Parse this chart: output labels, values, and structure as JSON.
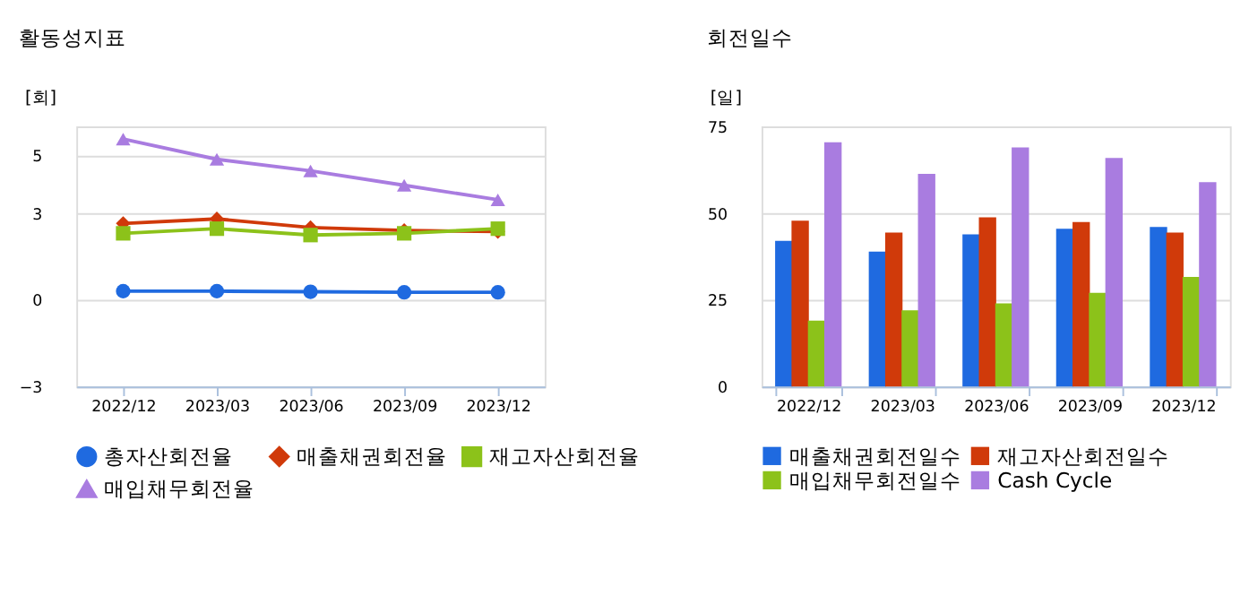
{
  "chart_data": [
    {
      "type": "line",
      "title": "활동성지표",
      "ylabel": "[회]",
      "categories": [
        "2022/12",
        "2023/03",
        "2023/06",
        "2023/09",
        "2023/12"
      ],
      "ylim": [
        -3,
        6
      ],
      "yticks": [
        -3,
        0,
        3,
        5
      ],
      "grid": "y",
      "legend": "bottom",
      "line_style": "solid",
      "series": [
        {
          "name": "총자산회전율",
          "color": "#1f6ae0",
          "marker": "circle",
          "values": [
            0.3,
            0.3,
            0.28,
            0.26,
            0.26
          ]
        },
        {
          "name": "매출채권회전율",
          "color": "#d03a0a",
          "marker": "diamond",
          "values": [
            2.64,
            2.8,
            2.5,
            2.4,
            2.36
          ]
        },
        {
          "name": "재고자산회전율",
          "color": "#8cc21a",
          "marker": "square",
          "values": [
            2.3,
            2.46,
            2.24,
            2.3,
            2.46
          ]
        },
        {
          "name": "매입채무회전율",
          "color": "#a97ce0",
          "marker": "triangle",
          "values": [
            5.56,
            4.86,
            4.46,
            3.96,
            3.46
          ]
        }
      ]
    },
    {
      "type": "bar",
      "title": "회전일수",
      "ylabel": "[일]",
      "categories": [
        "2022/12",
        "2023/03",
        "2023/06",
        "2023/09",
        "2023/12"
      ],
      "ylim": [
        0,
        75
      ],
      "yticks": [
        0,
        25,
        50,
        75
      ],
      "grid": "y",
      "legend": "bottom",
      "series": [
        {
          "name": "매출채권회전일수",
          "color": "#1f6ae0",
          "values": [
            42,
            38.9,
            43.9,
            45.5,
            46
          ]
        },
        {
          "name": "재고자산회전일수",
          "color": "#d03a0a",
          "values": [
            47.8,
            44.4,
            48.8,
            47.4,
            44.4
          ]
        },
        {
          "name": "매입채무회전일수",
          "color": "#8cc21a",
          "values": [
            19,
            22,
            24,
            27,
            31.6
          ]
        },
        {
          "name": "Cash Cycle",
          "color": "#a97ce0",
          "values": [
            70.4,
            61.3,
            68.9,
            65.9,
            58.9
          ]
        }
      ]
    }
  ]
}
